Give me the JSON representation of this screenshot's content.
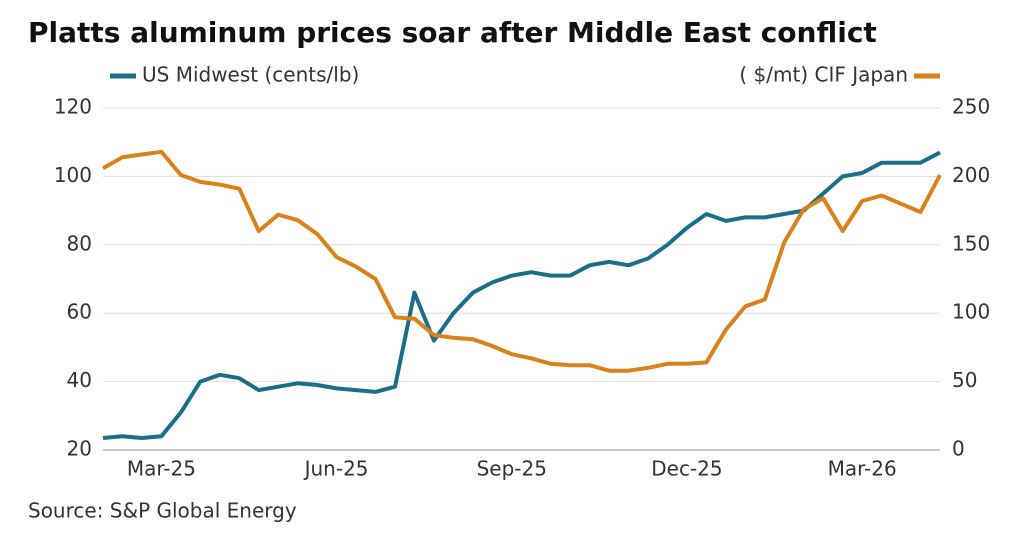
{
  "chart_data": {
    "type": "line",
    "title": "Platts aluminum prices soar after Middle East conflict",
    "source": "Source: S&P Global Energy",
    "categories": [
      null,
      null,
      null,
      "Mar-25",
      null,
      null,
      null,
      null,
      null,
      null,
      null,
      null,
      "Jun-25",
      null,
      null,
      null,
      null,
      null,
      null,
      null,
      null,
      "Sep-25",
      null,
      null,
      null,
      null,
      null,
      null,
      null,
      null,
      "Dec-25",
      null,
      null,
      null,
      null,
      null,
      null,
      null,
      null,
      "Mar-26",
      null,
      null,
      null,
      null
    ],
    "series": [
      {
        "name": "US Midwest (cents/lb)",
        "color": "#1b6e87",
        "axis": "y",
        "values": [
          23.5,
          24,
          23.5,
          24,
          31,
          40,
          42,
          41,
          37.5,
          38.5,
          39.5,
          39,
          38,
          37.5,
          37,
          38.5,
          66,
          52,
          60,
          66,
          69,
          71,
          72,
          71,
          71,
          74,
          75,
          74,
          76,
          80,
          85,
          89,
          87,
          88,
          88,
          89,
          90,
          95,
          100,
          101,
          104,
          104,
          104,
          107
        ]
      },
      {
        "name": "( $/mt) CIF Japan",
        "color": "#d9821c",
        "axis": "y2",
        "values": [
          206,
          214,
          216,
          218,
          201,
          196,
          194,
          191,
          160,
          172,
          168,
          158,
          141,
          134,
          125,
          97,
          96,
          84,
          82,
          81,
          76,
          70,
          67,
          63,
          62,
          62,
          58,
          58,
          60,
          63,
          63,
          64,
          88,
          105,
          110,
          152,
          176,
          184,
          160,
          182,
          186,
          180,
          174,
          201
        ]
      }
    ],
    "ylim": [
      20,
      120
    ],
    "yticks": [
      20,
      40,
      60,
      80,
      100,
      120
    ],
    "y2lim": [
      0,
      250
    ],
    "y2ticks": [
      0,
      50,
      100,
      150,
      200,
      250
    ],
    "grid": true
  }
}
